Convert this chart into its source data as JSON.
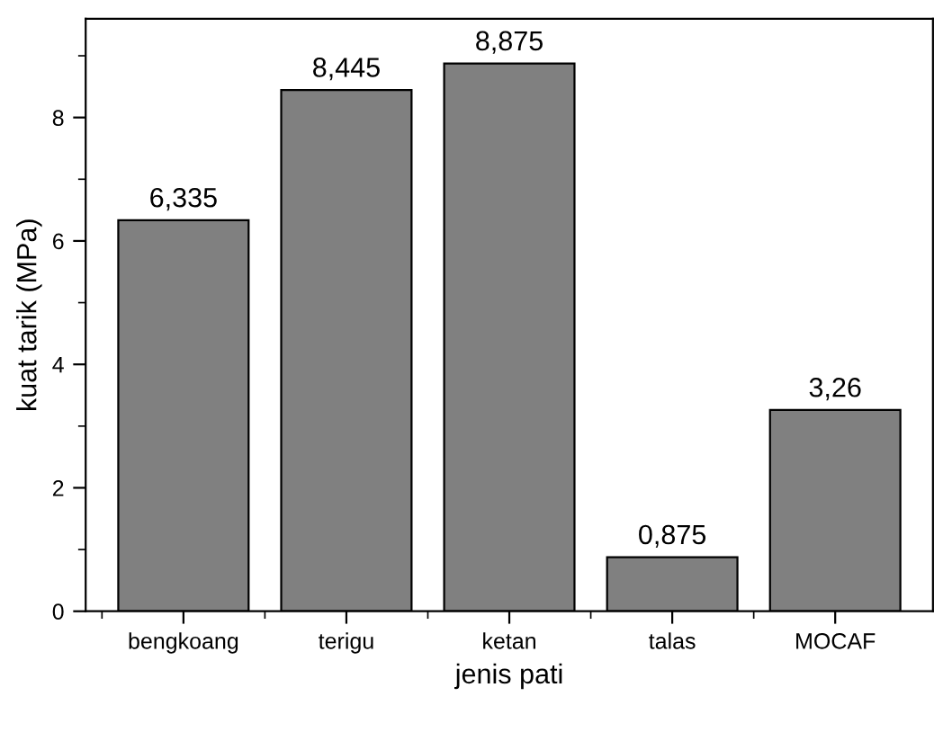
{
  "chart_data": {
    "type": "bar",
    "xlabel": "jenis pati",
    "ylabel": "kuat tarik (MPa)",
    "categories": [
      "bengkoang",
      "terigu",
      "ketan",
      "talas",
      "MOCAF"
    ],
    "values": [
      6.335,
      8.445,
      8.875,
      0.875,
      3.26
    ],
    "value_labels": [
      "6,335",
      "8,445",
      "8,875",
      "0,875",
      "3,26"
    ],
    "color": "#808080",
    "ylim": [
      0,
      9.6
    ],
    "yticks": [
      0,
      2,
      4,
      6,
      8
    ],
    "grid": false
  }
}
